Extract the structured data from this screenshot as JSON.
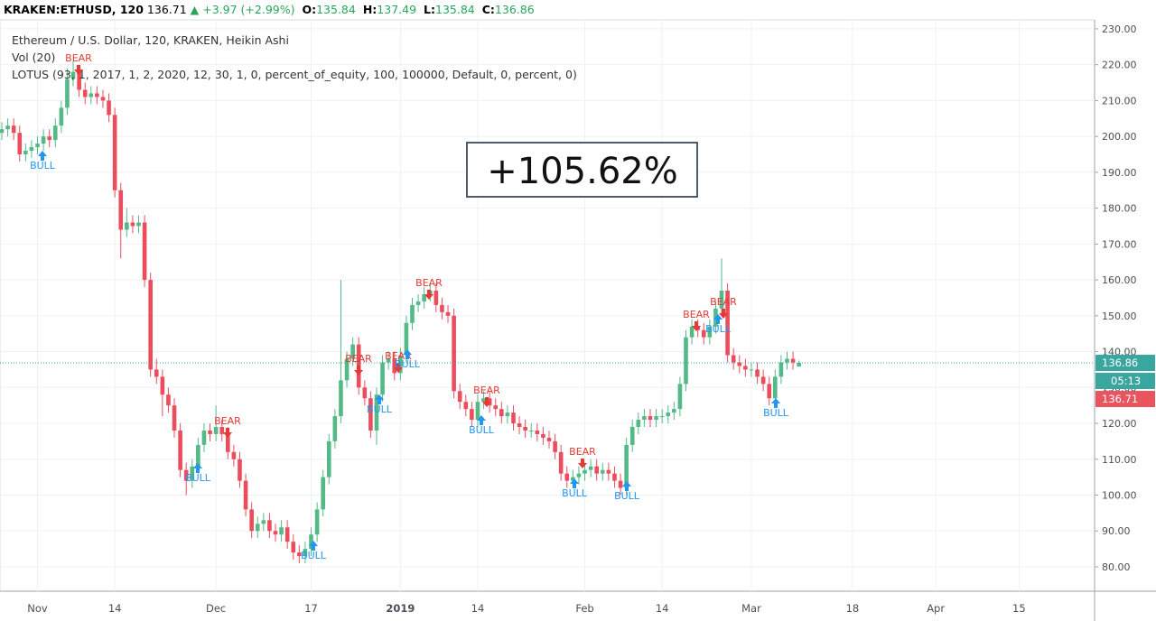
{
  "header": {
    "symbol": "KRAKEN:ETHUSD, 120",
    "last": "136.71",
    "change": "▲ +3.97 (+2.99%)",
    "o_label": "O:",
    "o": "135.84",
    "h_label": "H:",
    "h": "137.49",
    "l_label": "L:",
    "l": "135.84",
    "c_label": "C:",
    "c": "136.86"
  },
  "chart_data": {
    "type": "candlestick",
    "legend": [
      "Ethereum / U.S. Dollar, 120, KRAKEN, Heikin Ashi",
      "Vol (20)",
      "LOTUS (93, 1, 2017, 1, 2, 2020, 12, 30, 1, 0, percent_of_equity, 100, 100000, Default, 0, percent, 0)"
    ],
    "annotation": "+105.62%",
    "signals": [
      "BEAR",
      "BULL",
      "BEAR",
      "BULL",
      "BULL",
      "BEAR",
      "BULL",
      "BEAR",
      "BULL",
      "BEAR",
      "BEAR",
      "BULL",
      "BEAR",
      "BULL",
      "BULL",
      "BEAR",
      "BEAR",
      "BULL",
      "BULL"
    ],
    "price_labels": [
      "05:13",
      "136.71"
    ],
    "up_color": "#53b987",
    "down_color": "#eb4d5c",
    "grid": true,
    "ylim": [
      73.2,
      232.5
    ],
    "yticks": [
      {
        "value": 80,
        "label": "80.00"
      },
      {
        "value": 90,
        "label": "90.00"
      },
      {
        "value": 100,
        "label": "100.00"
      },
      {
        "value": 110,
        "label": "110.00"
      },
      {
        "value": 120,
        "label": "120.00"
      },
      {
        "value": 130,
        "label": "130.00"
      },
      {
        "value": 140,
        "label": "140.00"
      },
      {
        "value": 150,
        "label": "150.00"
      },
      {
        "value": 160,
        "label": "160.00"
      },
      {
        "value": 170,
        "label": "170.00"
      },
      {
        "value": 180,
        "label": "180.00"
      },
      {
        "value": 190,
        "label": "190.00"
      },
      {
        "value": 200,
        "label": "200.00"
      },
      {
        "value": 210,
        "label": "210.00"
      },
      {
        "value": 220,
        "label": "220.00"
      },
      {
        "value": 230,
        "label": "230.00"
      }
    ],
    "categories": [
      null,
      null,
      null,
      null,
      null,
      null,
      "Nov",
      null,
      null,
      null,
      null,
      null,
      null,
      null,
      null,
      null,
      null,
      null,
      null,
      "14",
      null,
      null,
      null,
      null,
      null,
      null,
      null,
      null,
      null,
      null,
      null,
      null,
      null,
      null,
      null,
      null,
      "Dec",
      null,
      null,
      null,
      null,
      null,
      null,
      null,
      null,
      null,
      null,
      null,
      null,
      null,
      null,
      null,
      "17",
      null,
      null,
      null,
      null,
      null,
      null,
      null,
      null,
      null,
      null,
      null,
      null,
      null,
      null,
      "2019",
      null,
      null,
      null,
      null,
      null,
      null,
      null,
      null,
      null,
      null,
      null,
      null,
      "14",
      null,
      null,
      null,
      null,
      null,
      null,
      null,
      null,
      null,
      null,
      null,
      null,
      null,
      null,
      null,
      null,
      null,
      "Feb",
      null,
      null,
      null,
      null,
      null,
      null,
      null,
      null,
      null,
      null,
      null,
      null,
      "14",
      null,
      null,
      null,
      null,
      null,
      null,
      null,
      null,
      null,
      null,
      null,
      null,
      null,
      null,
      "Mar",
      null,
      null,
      null,
      null,
      null,
      null,
      null,
      null,
      null,
      null,
      null,
      null,
      null,
      null,
      null,
      null,
      "18",
      null,
      null,
      null,
      null,
      null,
      null,
      null,
      null,
      null,
      null,
      null,
      null,
      null,
      "Apr",
      null,
      null,
      null,
      null,
      null,
      null,
      null,
      null,
      null,
      null,
      null,
      null,
      null,
      "15",
      null,
      null,
      null,
      null,
      null,
      null,
      null,
      null,
      null,
      null,
      null,
      null
    ],
    "open": [
      201,
      202,
      203,
      201,
      195,
      196,
      197,
      198,
      200,
      199,
      203,
      208,
      216,
      218,
      213,
      211,
      212,
      211,
      210,
      206,
      185,
      174,
      176,
      175,
      176,
      160,
      135,
      133,
      128,
      125,
      118,
      107,
      104,
      108,
      114,
      118,
      117,
      119,
      117,
      112,
      110,
      104,
      96,
      90,
      92,
      93,
      90,
      89,
      91,
      87,
      84,
      83,
      85,
      89,
      96,
      105,
      115,
      122,
      132,
      138,
      142,
      130,
      127,
      118,
      128,
      137,
      138,
      134,
      139,
      148,
      153,
      154,
      156,
      157,
      153,
      151,
      150,
      129,
      126,
      124,
      121,
      126,
      127,
      125,
      124,
      122,
      123,
      120,
      119,
      118,
      118,
      117,
      116,
      115,
      112,
      106,
      104,
      105,
      106,
      107,
      108,
      106,
      107,
      106,
      104,
      102,
      114,
      119,
      121,
      122,
      121,
      122,
      122,
      123,
      124,
      131,
      144,
      147,
      146,
      144,
      147,
      152,
      157,
      139,
      137,
      136,
      135,
      135,
      133,
      131,
      127,
      133,
      137,
      138,
      135.84,
      null,
      null,
      null,
      null,
      null,
      null,
      null,
      null,
      null,
      null,
      null,
      null,
      null,
      null,
      null,
      null,
      null,
      null,
      null,
      null,
      null,
      null,
      null,
      null,
      null,
      null,
      null,
      null,
      null,
      null,
      null,
      null,
      null,
      null,
      null,
      null,
      null,
      null,
      null,
      null,
      null,
      null,
      null,
      null,
      null,
      null,
      null,
      null,
      null
    ],
    "high": [
      204,
      205,
      205,
      203,
      198,
      199,
      200,
      202,
      202,
      205,
      210,
      219,
      221,
      220,
      215,
      214,
      214,
      213,
      212,
      208,
      187,
      180,
      178,
      178,
      178,
      162,
      138,
      135,
      130,
      127,
      120,
      109,
      110,
      116,
      120,
      120,
      125,
      121,
      119,
      114,
      112,
      106,
      98,
      94,
      95,
      95,
      92,
      93,
      93,
      89,
      86,
      87,
      91,
      98,
      107,
      117,
      124,
      160,
      140,
      144,
      144,
      132,
      129,
      130,
      139,
      140,
      140,
      141,
      150,
      155,
      156,
      158,
      159,
      159,
      155,
      153,
      152,
      131,
      128,
      126,
      128,
      129,
      129,
      127,
      126,
      125,
      125,
      122,
      121,
      120,
      120,
      119,
      118,
      117,
      114,
      108,
      107,
      108,
      109,
      110,
      110,
      109,
      109,
      108,
      106,
      116,
      121,
      123,
      124,
      124,
      124,
      124,
      125,
      126,
      133,
      146,
      149,
      149,
      148,
      149,
      154,
      166,
      159,
      141,
      139,
      138,
      137,
      137,
      135,
      133,
      135,
      139,
      140,
      140,
      137.49,
      null,
      null,
      null,
      null,
      null,
      null,
      null,
      null,
      null,
      null,
      null,
      null,
      null,
      null,
      null,
      null,
      null,
      null,
      null,
      null,
      null,
      null,
      null,
      null,
      null,
      null,
      null,
      null,
      null,
      null,
      null,
      null,
      null,
      null,
      null,
      null,
      null,
      null,
      null,
      null,
      null,
      null,
      null,
      null,
      null,
      null,
      null,
      null,
      null
    ],
    "low": [
      199,
      200,
      199,
      193,
      193,
      194,
      195,
      196,
      197,
      197,
      201,
      206,
      214,
      211,
      209,
      209,
      209,
      208,
      204,
      183,
      166,
      172,
      173,
      173,
      158,
      133,
      131,
      122,
      123,
      116,
      105,
      100,
      102,
      106,
      112,
      115,
      115,
      115,
      110,
      108,
      102,
      94,
      88,
      88,
      90,
      88,
      87,
      87,
      85,
      82,
      81,
      81,
      83,
      87,
      94,
      103,
      113,
      120,
      130,
      136,
      128,
      125,
      116,
      114,
      126,
      135,
      132,
      132,
      137,
      146,
      151,
      152,
      154,
      151,
      149,
      148,
      127,
      124,
      122,
      119,
      119,
      124,
      123,
      122,
      120,
      120,
      118,
      117,
      116,
      116,
      115,
      114,
      113,
      110,
      104,
      102,
      102,
      103,
      104,
      105,
      104,
      104,
      104,
      102,
      100,
      100,
      112,
      117,
      119,
      119,
      119,
      120,
      120,
      121,
      122,
      129,
      142,
      144,
      142,
      142,
      145,
      150,
      137,
      135,
      134,
      133,
      133,
      131,
      129,
      125,
      125,
      131,
      135,
      135,
      135.84,
      null,
      null,
      null,
      null,
      null,
      null,
      null,
      null,
      null,
      null,
      null,
      null,
      null,
      null,
      null,
      null,
      null,
      null,
      null,
      null,
      null,
      null,
      null,
      null,
      null,
      null,
      null,
      null,
      null,
      null,
      null,
      null,
      null,
      null,
      null,
      null,
      null,
      null,
      null,
      null,
      null,
      null,
      null,
      null,
      null,
      null,
      null,
      null,
      null
    ],
    "close": [
      202,
      203,
      201,
      195,
      196,
      197,
      198,
      200,
      199,
      203,
      208,
      216,
      218,
      213,
      211,
      212,
      211,
      210,
      206,
      185,
      174,
      176,
      175,
      176,
      160,
      135,
      133,
      128,
      125,
      118,
      107,
      104,
      108,
      114,
      118,
      117,
      119,
      117,
      112,
      110,
      104,
      96,
      90,
      92,
      93,
      90,
      89,
      91,
      87,
      84,
      83,
      85,
      89,
      96,
      105,
      115,
      122,
      132,
      138,
      142,
      130,
      127,
      118,
      128,
      137,
      138,
      134,
      139,
      148,
      153,
      154,
      156,
      157,
      153,
      151,
      150,
      129,
      126,
      124,
      121,
      126,
      127,
      125,
      124,
      122,
      123,
      120,
      119,
      118,
      118,
      117,
      116,
      115,
      112,
      106,
      104,
      105,
      106,
      107,
      108,
      106,
      107,
      106,
      104,
      102,
      114,
      119,
      121,
      122,
      121,
      122,
      122,
      123,
      124,
      131,
      144,
      147,
      146,
      144,
      147,
      152,
      157,
      139,
      137,
      136,
      135,
      135,
      133,
      131,
      127,
      133,
      137,
      138,
      137,
      136.86,
      null,
      null,
      null,
      null,
      null,
      null,
      null,
      null,
      null,
      null,
      null,
      null,
      null,
      null,
      null,
      null,
      null,
      null,
      null,
      null,
      null,
      null,
      null,
      null,
      null,
      null,
      null,
      null,
      null,
      null,
      null,
      null,
      null,
      null,
      null,
      null,
      null,
      null,
      null,
      null,
      null,
      null,
      null,
      null,
      null,
      null,
      null,
      null,
      null
    ]
  }
}
